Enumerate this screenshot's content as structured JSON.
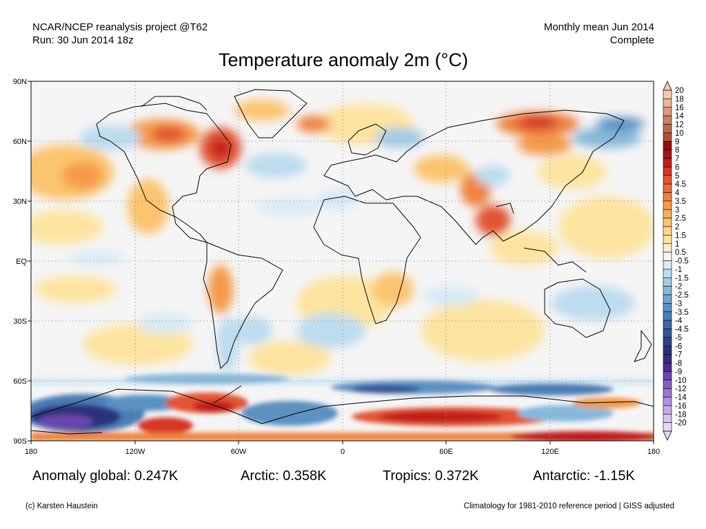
{
  "header": {
    "left_line1": "NCAR/NCEP reanalysis project @T62",
    "left_line2": "Run: 30 Jun 2014 18z",
    "right_line1": "Monthly mean Jun 2014",
    "right_line2": "Complete"
  },
  "title": "Temperature anomaly 2m (°C)",
  "map": {
    "lat_labels": [
      "90N",
      "60N",
      "30N",
      "EQ",
      "30S",
      "60S",
      "90S"
    ],
    "lon_labels": [
      "180",
      "120W",
      "60W",
      "0",
      "60E",
      "120E",
      "180"
    ]
  },
  "colorbar": {
    "labels": [
      "20",
      "18",
      "16",
      "14",
      "12",
      "10",
      "9",
      "8",
      "7",
      "6",
      "5",
      "4.5",
      "4",
      "3.5",
      "3",
      "2.5",
      "2",
      "1.5",
      "1",
      "0.5",
      "-0.5",
      "-1",
      "-1.5",
      "-2",
      "-2.5",
      "-3",
      "-3.5",
      "-4",
      "-4.5",
      "-5",
      "-6",
      "-7",
      "-8",
      "-9",
      "-10",
      "-12",
      "-14",
      "-16",
      "-18",
      "-20"
    ],
    "colors": [
      "#f6c9b1",
      "#eab497",
      "#dc9a7b",
      "#cd8062",
      "#be674c",
      "#ad4e37",
      "#8f0f10",
      "#a51417",
      "#c01d1f",
      "#d53625",
      "#e25430",
      "#ea6b35",
      "#f0823e",
      "#f59a4a",
      "#f8b05a",
      "#fbc46e",
      "#fcd684",
      "#fde4a0",
      "#fdefc4",
      "#f5f5f5",
      "#d7eaf5",
      "#bcdcef",
      "#a2cbe5",
      "#87b8da",
      "#70a5cf",
      "#5b91c2",
      "#4b7db5",
      "#3e69a7",
      "#345598",
      "#2f4389",
      "#2a317b",
      "#372b7a",
      "#4c2e90",
      "#6a45ad",
      "#8460c4",
      "#9b78d3",
      "#b092df",
      "#c3aae8",
      "#d5c4ef",
      "#e5dbf5"
    ]
  },
  "stats": {
    "global": "Anomaly global: 0.247K",
    "arctic": "Arctic: 0.358K",
    "tropics": "Tropics: 0.372K",
    "antarctic": "Antarctic: -1.15K"
  },
  "footer": {
    "credit": "(c) Karsten Haustein",
    "climatology": "Climatology for 1981-2010 reference period | GISS adjusted"
  }
}
